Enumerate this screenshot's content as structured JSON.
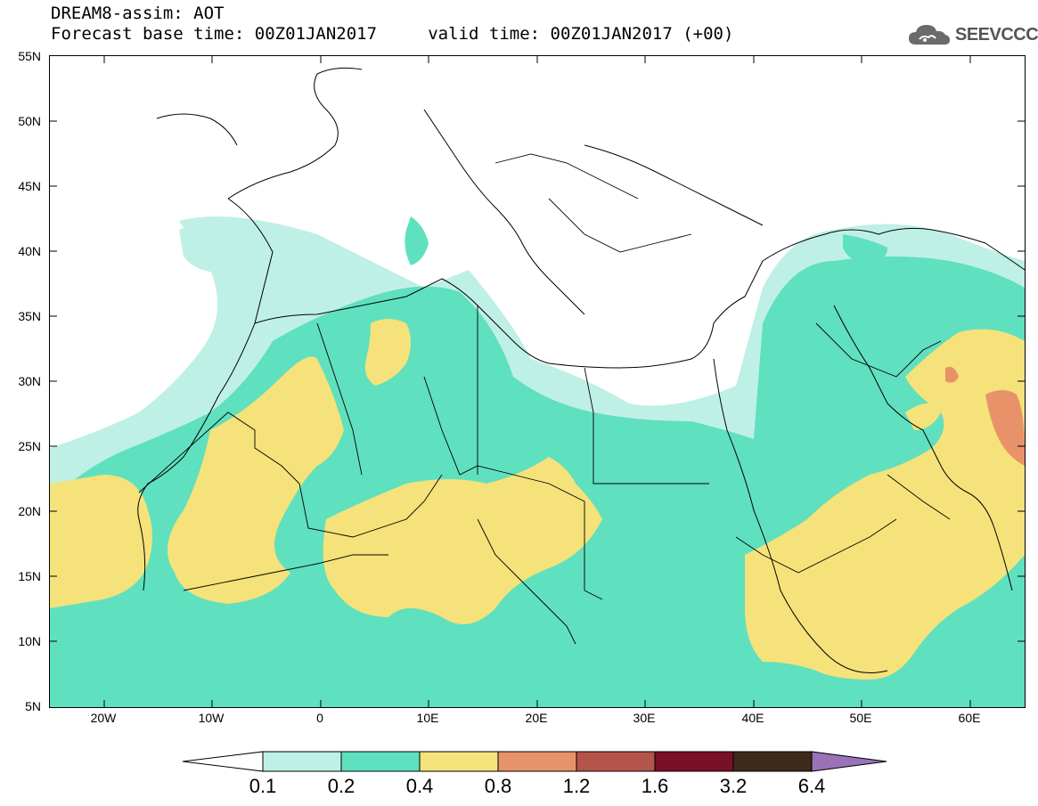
{
  "header": {
    "line1": "DREAM8-assim: AOT",
    "line2": "Forecast base time: 00Z01JAN2017     valid time: 00Z01JAN2017 (+00)"
  },
  "logo": {
    "text": "SEEVCCC",
    "icon": "cloud-icon"
  },
  "axes": {
    "lat_labels": [
      "55N",
      "50N",
      "45N",
      "40N",
      "35N",
      "30N",
      "25N",
      "20N",
      "15N",
      "10N",
      "5N"
    ],
    "lon_labels": [
      "20W",
      "10W",
      "0",
      "10E",
      "20E",
      "30E",
      "40E",
      "50E",
      "60E"
    ],
    "lon_range": [
      -25,
      65
    ],
    "lat_range": [
      5,
      55
    ]
  },
  "colorbar": {
    "labels": [
      "0.1",
      "0.2",
      "0.4",
      "0.8",
      "1.2",
      "1.6",
      "3.2",
      "6.4"
    ],
    "colors": [
      "#ffffff",
      "#bff0e6",
      "#5fe0bf",
      "#f5e27a",
      "#e8926a",
      "#b4544a",
      "#7a0f2a",
      "#3f2a1a",
      "#9a72b8"
    ]
  }
}
